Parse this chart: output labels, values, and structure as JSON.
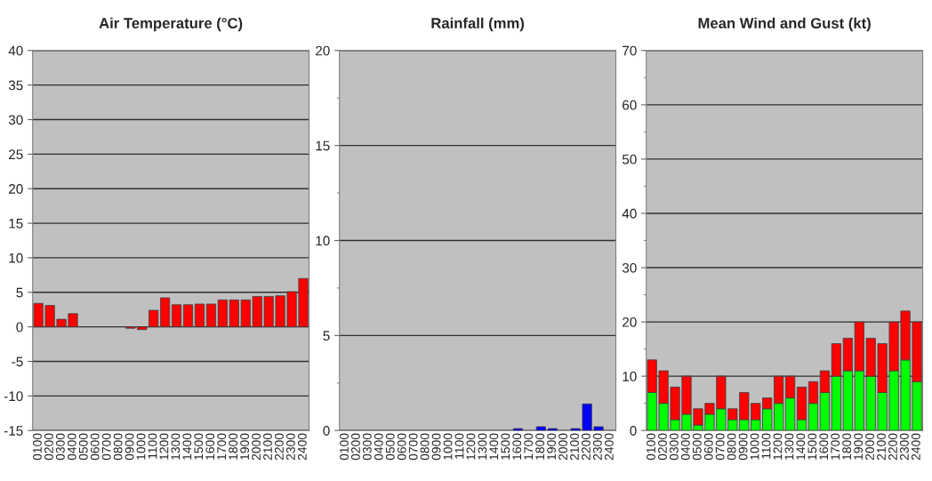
{
  "chart_data": [
    {
      "type": "bar",
      "title": "Air Temperature (°C)",
      "categories": [
        "0100",
        "0200",
        "0300",
        "0400",
        "0500",
        "0600",
        "0700",
        "0800",
        "0900",
        "1000",
        "1100",
        "1200",
        "1300",
        "1400",
        "1500",
        "1600",
        "1700",
        "1800",
        "1900",
        "2000",
        "2100",
        "2200",
        "2300",
        "2400"
      ],
      "series": [
        {
          "color": "#ff0000",
          "values": [
            3.4,
            3.1,
            1.1,
            1.9,
            null,
            null,
            null,
            null,
            -0.2,
            -0.4,
            2.4,
            4.2,
            3.2,
            3.2,
            3.3,
            3.3,
            3.9,
            3.9,
            3.9,
            4.4,
            4.4,
            4.5,
            5.1,
            7.0
          ]
        }
      ],
      "ylim": [
        -15,
        40
      ],
      "yticks": [
        -15,
        -10,
        -5,
        0,
        5,
        10,
        15,
        20,
        25,
        30,
        35,
        40
      ],
      "grid": "y"
    },
    {
      "type": "bar",
      "title": "Rainfall (mm)",
      "categories": [
        "0100",
        "0200",
        "0300",
        "0400",
        "0500",
        "0600",
        "0700",
        "0800",
        "0900",
        "1000",
        "1100",
        "1200",
        "1300",
        "1400",
        "1500",
        "1600",
        "1700",
        "1800",
        "1900",
        "2000",
        "2100",
        "2200",
        "2300",
        "2400"
      ],
      "series": [
        {
          "color": "#0000ff",
          "values": [
            0,
            0,
            0,
            0,
            0,
            0,
            0,
            0,
            0,
            0,
            0,
            0,
            0,
            0,
            0,
            0.1,
            0,
            0.2,
            0.1,
            0,
            0.1,
            1.4,
            0.2,
            0
          ]
        }
      ],
      "ylim": [
        0,
        20
      ],
      "yticks": [
        0,
        {
          "value": 2.5,
          "label": null
        },
        5,
        {
          "value": 7.5,
          "label": null
        },
        10,
        {
          "value": 12.5,
          "label": null
        },
        15,
        {
          "value": 17.5,
          "label": null
        },
        20
      ],
      "grid": "y"
    },
    {
      "type": "bar",
      "title": "Mean Wind and Gust (kt)",
      "stacked": true,
      "categories": [
        "0100",
        "0200",
        "0300",
        "0400",
        "0500",
        "0600",
        "0700",
        "0800",
        "0900",
        "1000",
        "1100",
        "1200",
        "1300",
        "1400",
        "1500",
        "1600",
        "1700",
        "1800",
        "1900",
        "2000",
        "2100",
        "2200",
        "2300",
        "2400"
      ],
      "series": [
        {
          "color": "#00ff00",
          "values": [
            7,
            5,
            2,
            3,
            1,
            3,
            4,
            2,
            2,
            2,
            4,
            5,
            6,
            2,
            5,
            7,
            10,
            11,
            11,
            10,
            7,
            11,
            13,
            9
          ]
        },
        {
          "color": "#ff0000",
          "values": [
            6,
            6,
            6,
            7,
            3,
            2,
            6,
            2,
            5,
            3,
            2,
            5,
            4,
            6,
            4,
            4,
            6,
            6,
            9,
            7,
            9,
            9,
            9,
            11
          ]
        }
      ],
      "ylim": [
        0,
        70
      ],
      "yticks": [
        0,
        {
          "value": 5,
          "label": null
        },
        10,
        {
          "value": 15,
          "label": null
        },
        20,
        {
          "value": 25,
          "label": null
        },
        30,
        {
          "value": 35,
          "label": null
        },
        40,
        {
          "value": 45,
          "label": null
        },
        50,
        {
          "value": 55,
          "label": null
        },
        60,
        {
          "value": 65,
          "label": null
        },
        70
      ],
      "grid": "y"
    }
  ]
}
